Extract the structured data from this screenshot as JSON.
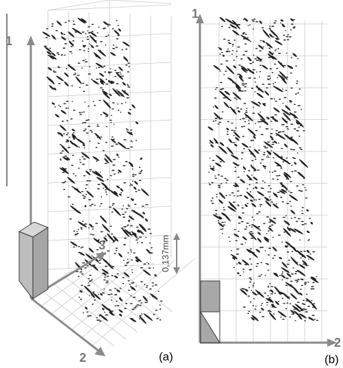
{
  "panel_a": {
    "axis_labels": [
      "1",
      "2",
      "3"
    ],
    "scale_label": "0,137mm",
    "caption": "(a)"
  },
  "panel_b": {
    "axis_labels": [
      "1",
      "2"
    ],
    "caption": "(b)"
  }
}
